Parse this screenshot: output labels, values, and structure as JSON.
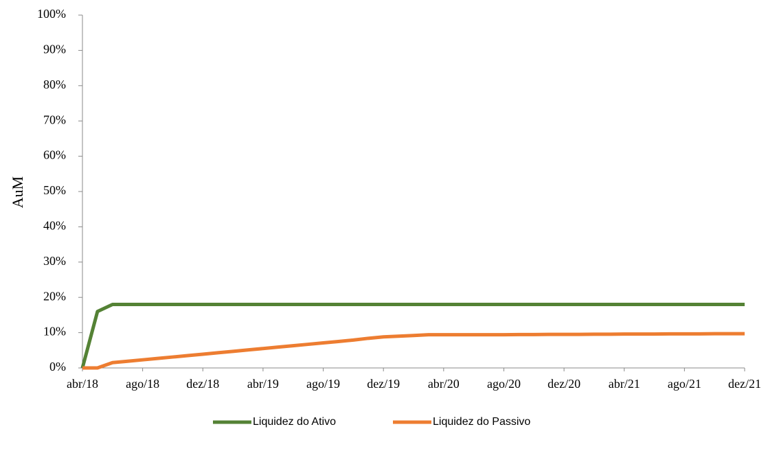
{
  "chart_data": {
    "type": "line",
    "y_label": "AuM",
    "categories": [
      "abr/18",
      null,
      null,
      null,
      "ago/18",
      null,
      null,
      null,
      "dez/18",
      null,
      null,
      null,
      "abr/19",
      null,
      null,
      null,
      "ago/19",
      null,
      null,
      null,
      "dez/19",
      null,
      null,
      null,
      "abr/20",
      null,
      null,
      null,
      "ago/20",
      null,
      null,
      null,
      "dez/20",
      null,
      null,
      null,
      "abr/21",
      null,
      null,
      null,
      "ago/21",
      null,
      null,
      null,
      "dez/21"
    ],
    "series": [
      {
        "name": "Liquidez do Ativo",
        "color": "#548235",
        "values": [
          0,
          16,
          18,
          18,
          18,
          18,
          18,
          18,
          18,
          18,
          18,
          18,
          18,
          18,
          18,
          18,
          18,
          18,
          18,
          18,
          18,
          18,
          18,
          18,
          18,
          18,
          18,
          18,
          18,
          18,
          18,
          18,
          18,
          18,
          18,
          18,
          18,
          18,
          18,
          18,
          18,
          18,
          18,
          18,
          18
        ]
      },
      {
        "name": "Liquidez do Passivo",
        "color": "#ed7d31",
        "values": [
          0,
          0,
          1.5,
          1.9,
          2.3,
          2.7,
          3.1,
          3.5,
          3.9,
          4.3,
          4.7,
          5.1,
          5.5,
          5.9,
          6.3,
          6.7,
          7.1,
          7.5,
          7.9,
          8.4,
          8.8,
          9.0,
          9.2,
          9.4,
          9.4,
          9.4,
          9.4,
          9.4,
          9.4,
          9.45,
          9.45,
          9.5,
          9.5,
          9.5,
          9.55,
          9.55,
          9.6,
          9.6,
          9.6,
          9.65,
          9.65,
          9.65,
          9.7,
          9.7,
          9.7
        ]
      }
    ],
    "ylim": [
      0,
      100
    ],
    "yticks": [
      {
        "value": 0,
        "label": "0%"
      },
      {
        "value": 10,
        "label": "10%"
      },
      {
        "value": 20,
        "label": "20%"
      },
      {
        "value": 30,
        "label": "30%"
      },
      {
        "value": 40,
        "label": "40%"
      },
      {
        "value": 50,
        "label": "50%"
      },
      {
        "value": 60,
        "label": "60%"
      },
      {
        "value": 70,
        "label": "70%"
      },
      {
        "value": 80,
        "label": "80%"
      },
      {
        "value": 90,
        "label": "90%"
      },
      {
        "value": 100,
        "label": "100%"
      }
    ],
    "grid": false,
    "legend": "bottom"
  }
}
